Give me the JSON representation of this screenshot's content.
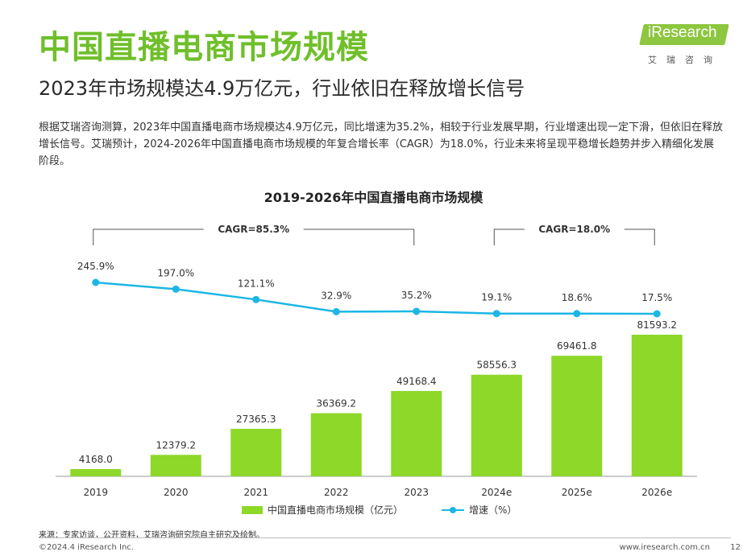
{
  "header": {
    "title": "中国直播电商市场规模",
    "subtitle": "2023年市场规模达4.9万亿元，行业依旧在释放增长信号"
  },
  "logo": {
    "word": "iResearch",
    "cn": "艾瑞咨询"
  },
  "summary": "根据艾瑞咨询测算，2023年中国直播电商市场规模达4.9万亿元，同比增速为35.2%，相较于行业发展早期，行业增速出现一定下滑，但依旧在释放增长信号。艾瑞预计，2024-2026年中国直播电商市场规模的年复合增长率（CAGR）为18.0%，行业未来将呈现平稳增长趋势并步入精细化发展阶段。",
  "chart_data": {
    "type": "bar",
    "title": "2019-2026年中国直播电商市场规模",
    "categories": [
      "2019",
      "2020",
      "2021",
      "2022",
      "2023",
      "2024e",
      "2025e",
      "2026e"
    ],
    "series": [
      {
        "name": "中国直播电商市场规模（亿元）",
        "type": "bar",
        "values": [
          4168.0,
          12379.2,
          27365.3,
          36369.2,
          49168.4,
          58556.3,
          69461.8,
          81593.2
        ],
        "labels": [
          "4168.0",
          "12379.2",
          "27365.3",
          "36369.2",
          "49168.4",
          "58556.3",
          "69461.8",
          "81593.2"
        ]
      },
      {
        "name": "增速（%）",
        "type": "line",
        "values": [
          245.9,
          197.0,
          121.1,
          32.9,
          35.2,
          19.1,
          18.6,
          17.5
        ],
        "labels": [
          "245.9%",
          "197.0%",
          "121.1%",
          "32.9%",
          "35.2%",
          "19.1%",
          "18.6%",
          "17.5%"
        ]
      }
    ],
    "annotations": [
      {
        "text": "CAGR=85.3%",
        "from": "2019",
        "to": "2023"
      },
      {
        "text": "CAGR=18.0%",
        "from": "2024e",
        "to": "2026e"
      }
    ],
    "legend": "bottom",
    "grid": false,
    "colors": {
      "bar": "#8dd829",
      "line": "#1cb6e4",
      "title": "#6fbf2a"
    }
  },
  "source": "来源：专家访谈，公开资料，艾瑞咨询研究院自主研究及绘制。",
  "footer": {
    "copyright": "©2024.4 iResearch Inc.",
    "website": "www.iresearch.com.cn",
    "page": "12"
  }
}
